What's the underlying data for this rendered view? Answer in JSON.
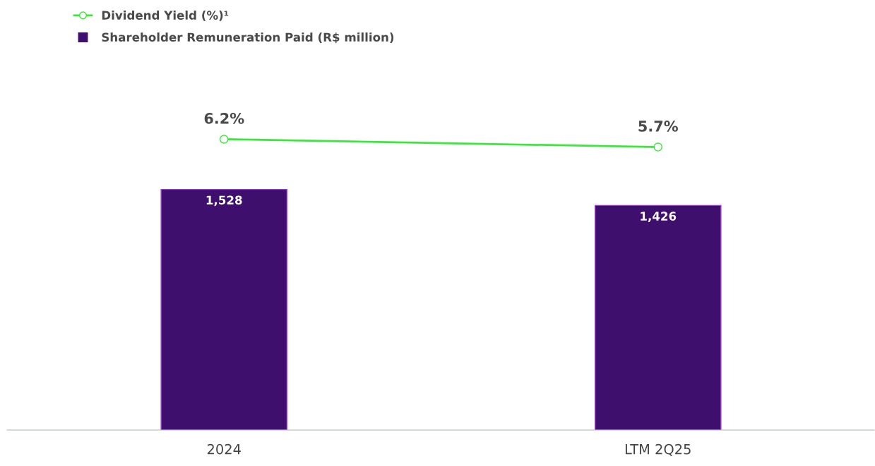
{
  "chart_data": {
    "type": "bar",
    "categories": [
      "2024",
      "LTM 2Q25"
    ],
    "series": [
      {
        "name": "Shareholder Remuneration Paid (R$ million)",
        "color": "#3f0f6e",
        "values": [
          1528,
          1426
        ],
        "value_labels": [
          "1,528",
          "1,426"
        ]
      },
      {
        "name": "Dividend Yield (%)¹",
        "type": "line",
        "axis": "y2",
        "color": "#3ae83a",
        "values": [
          6.2,
          5.7
        ],
        "value_labels": [
          "6.2%",
          "5.7%"
        ]
      }
    ],
    "ylim": [
      0,
      2350
    ],
    "y2lim": [
      -12.5,
      11.3
    ],
    "tick_labels": "x",
    "data_labels": true,
    "legend": "top left",
    "marker": "circle",
    "line_style": "solid",
    "grid": false
  }
}
